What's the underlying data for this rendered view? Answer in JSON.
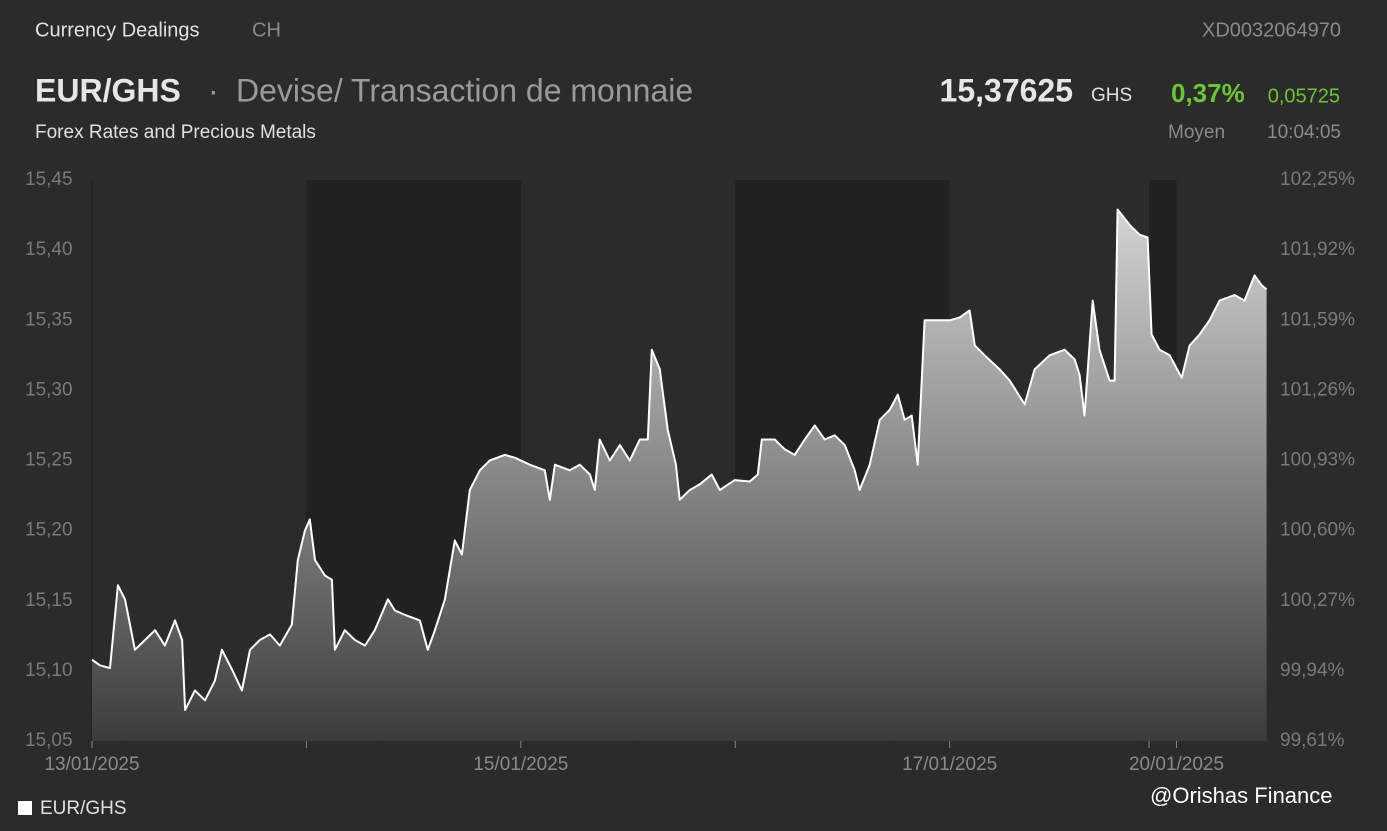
{
  "header": {
    "section": "Currency Dealings",
    "country": "CH",
    "isin": "XD0032064970",
    "symbol": "EUR/GHS",
    "separator": "·",
    "description": "Devise/ Transaction de monnaie",
    "market": "Forex Rates and Precious Metals",
    "price": "15,37625",
    "currency": "GHS",
    "change_percent": "0,37%",
    "change": "0,05725",
    "price_type": "Moyen",
    "time": "10:04:05"
  },
  "watermark": "@Orishas Finance",
  "chart_data": {
    "type": "area",
    "series": [
      {
        "name": "EUR/GHS",
        "color": "#ffffff",
        "x": [
          0,
          0.037,
          0.084,
          0.121,
          0.154,
          0.2,
          0.247,
          0.294,
          0.34,
          0.387,
          0.42,
          0.434,
          0.48,
          0.527,
          0.573,
          0.606,
          0.653,
          0.699,
          0.737,
          0.783,
          0.83,
          0.876,
          0.932,
          0.96,
          0.993,
          1.016,
          1.04,
          1.086,
          1.119,
          1.133,
          1.179,
          1.226,
          1.273,
          1.319,
          1.38,
          1.413,
          1.459,
          1.529,
          1.566,
          1.599,
          1.646,
          1.692,
          1.725,
          1.762,
          1.809,
          1.855,
          1.925,
          1.972,
          2.042,
          2.112,
          2.135,
          2.159,
          2.228,
          2.275,
          2.322,
          2.345,
          2.368,
          2.415,
          2.462,
          2.508,
          2.555,
          2.592,
          2.611,
          2.648,
          2.685,
          2.723,
          2.741,
          2.788,
          2.835,
          2.89,
          2.928,
          2.998,
          3.068,
          3.105,
          3.124,
          3.184,
          3.231,
          3.277,
          3.324,
          3.371,
          3.417,
          3.464,
          3.511,
          3.557,
          3.58,
          3.627,
          3.674,
          3.72,
          3.758,
          3.79,
          3.823,
          3.851,
          3.883,
          3.93,
          4.0,
          4.047,
          4.093,
          4.117,
          4.163,
          4.233,
          4.28,
          4.35,
          4.396,
          4.466,
          4.536,
          4.583,
          4.606,
          4.629,
          4.667,
          4.699,
          4.746,
          4.769,
          4.783,
          4.839,
          4.886,
          4.923,
          4.942,
          4.979,
          5.026,
          5.082,
          5.119,
          5.166,
          5.212,
          5.259,
          5.329,
          5.375,
          5.422,
          5.455,
          5.478
        ],
        "values": [
          15.108,
          15.104,
          15.102,
          15.161,
          15.151,
          15.115,
          15.122,
          15.129,
          15.118,
          15.136,
          15.122,
          15.072,
          15.086,
          15.079,
          15.093,
          15.115,
          15.101,
          15.086,
          15.115,
          15.122,
          15.126,
          15.118,
          15.133,
          15.179,
          15.2,
          15.208,
          15.179,
          15.168,
          15.165,
          15.115,
          15.129,
          15.122,
          15.118,
          15.129,
          15.151,
          15.143,
          15.14,
          15.136,
          15.115,
          15.129,
          15.151,
          15.193,
          15.183,
          15.229,
          15.243,
          15.25,
          15.254,
          15.252,
          15.247,
          15.243,
          15.222,
          15.247,
          15.243,
          15.247,
          15.24,
          15.229,
          15.265,
          15.25,
          15.261,
          15.25,
          15.265,
          15.265,
          15.329,
          15.315,
          15.272,
          15.247,
          15.222,
          15.229,
          15.233,
          15.24,
          15.229,
          15.236,
          15.235,
          15.24,
          15.265,
          15.265,
          15.258,
          15.254,
          15.265,
          15.275,
          15.265,
          15.268,
          15.261,
          15.243,
          15.229,
          15.247,
          15.279,
          15.286,
          15.297,
          15.279,
          15.282,
          15.247,
          15.35,
          15.35,
          15.35,
          15.352,
          15.357,
          15.332,
          15.325,
          15.315,
          15.307,
          15.29,
          15.315,
          15.325,
          15.329,
          15.322,
          15.311,
          15.282,
          15.364,
          15.329,
          15.307,
          15.307,
          15.429,
          15.418,
          15.411,
          15.409,
          15.34,
          15.329,
          15.325,
          15.309,
          15.332,
          15.34,
          15.35,
          15.364,
          15.368,
          15.364,
          15.382,
          15.375,
          15.372
        ]
      }
    ],
    "xlim": [
      0,
      5.48
    ],
    "xticks": [
      {
        "value": 0,
        "label": "13/01/2025"
      },
      {
        "value": 2,
        "label": "15/01/2025"
      },
      {
        "value": 4,
        "label": "17/01/2025"
      },
      {
        "value": 5.058,
        "label": "20/01/2025"
      }
    ],
    "minor_xticks": [
      1,
      3,
      4.93
    ],
    "shaded_bands": [
      [
        1,
        2
      ],
      [
        3,
        4
      ],
      [
        4.93,
        5.058
      ]
    ],
    "ylim": [
      15.05,
      15.45
    ],
    "yticks": [
      {
        "value": 15.05,
        "label": "15,05"
      },
      {
        "value": 15.1,
        "label": "15,10"
      },
      {
        "value": 15.15,
        "label": "15,15"
      },
      {
        "value": 15.2,
        "label": "15,20"
      },
      {
        "value": 15.25,
        "label": "15,25"
      },
      {
        "value": 15.3,
        "label": "15,30"
      },
      {
        "value": 15.35,
        "label": "15,35"
      },
      {
        "value": 15.4,
        "label": "15,40"
      },
      {
        "value": 15.45,
        "label": "15,45"
      }
    ],
    "y2lim": [
      99.61,
      102.25
    ],
    "y2ticks": [
      {
        "value": 99.61,
        "label": "99,61%"
      },
      {
        "value": 99.94,
        "label": "99,94%"
      },
      {
        "value": 100.27,
        "label": "100,27%"
      },
      {
        "value": 100.6,
        "label": "100,60%"
      },
      {
        "value": 100.93,
        "label": "100,93%"
      },
      {
        "value": 101.26,
        "label": "101,26%"
      },
      {
        "value": 101.59,
        "label": "101,59%"
      },
      {
        "value": 101.92,
        "label": "101,92%"
      },
      {
        "value": 102.25,
        "label": "102,25%"
      }
    ],
    "legend": "bottom-left"
  }
}
